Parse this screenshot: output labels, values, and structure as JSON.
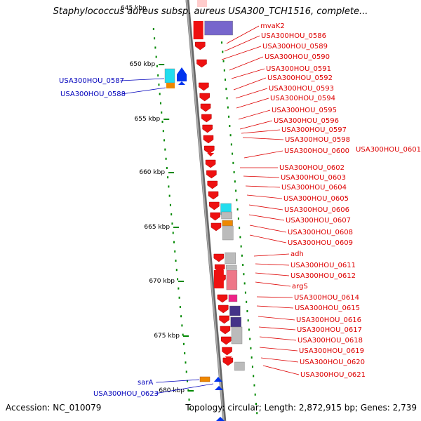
{
  "title": "Staphylococcus aureus subsp. aureus USA300_TCH1516, complete...",
  "title_partial": "645 kbp",
  "footer": {
    "accession": "Accession: NC_010079",
    "summary": "Topology: circular; Length: 2,872,915 bp; Genes: 2,739"
  },
  "scale": {
    "labels": [
      "650 kbp",
      "655 kbp",
      "660 kbp",
      "665 kbp",
      "670 kbp",
      "675 kbp",
      "680 kbp"
    ]
  },
  "colors": {
    "forward_label": "#dd0000",
    "reverse_label": "#0000bb",
    "red": "#ee1111",
    "blue": "#0033ee",
    "cyan": "#22ddee",
    "orange": "#ee8800",
    "gray": "#bbbbbb",
    "purple": "#7766cc",
    "navy": "#443388",
    "pink": "#ee7788",
    "magenta": "#ee2288",
    "tick_green": "#008800",
    "backbone": "#888888"
  },
  "forward_genes": [
    "mvaK2",
    "USA300HOU_0586",
    "USA300HOU_0589",
    "USA300HOU_0590",
    "USA300HOU_0591",
    "USA300HOU_0592",
    "USA300HOU_0593",
    "USA300HOU_0594",
    "USA300HOU_0595",
    "USA300HOU_0596",
    "USA300HOU_0597",
    "USA300HOU_0598",
    "USA300HOU_0600",
    "USA300HOU_0601",
    "USA300HOU_0602",
    "USA300HOU_0603",
    "USA300HOU_0604",
    "USA300HOU_0605",
    "USA300HOU_0606",
    "USA300HOU_0607",
    "USA300HOU_0608",
    "USA300HOU_0609",
    "adh",
    "USA300HOU_0611",
    "USA300HOU_0612",
    "argS",
    "USA300HOU_0614",
    "USA300HOU_0615",
    "USA300HOU_0616",
    "USA300HOU_0617",
    "USA300HOU_0618",
    "USA300HOU_0619",
    "USA300HOU_0620",
    "USA300HOU_0621"
  ],
  "reverse_genes": [
    "USA300HOU_0587",
    "USA300HOU_0588",
    "sarA",
    "USA300HOU_0623"
  ]
}
